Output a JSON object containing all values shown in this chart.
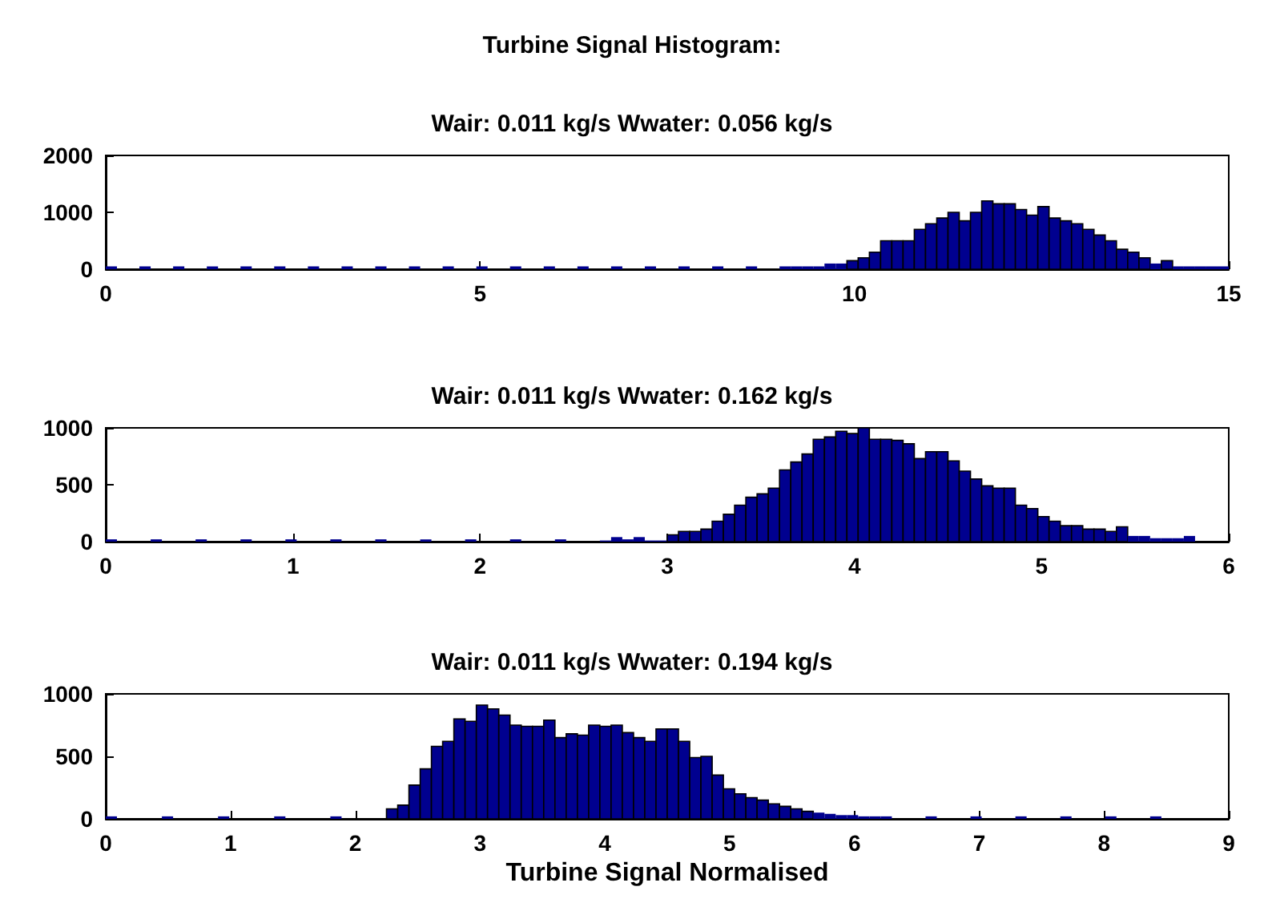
{
  "chart_data": [
    {
      "type": "histogram",
      "title": "Turbine Signal Histogram:",
      "subtitle": "Wair: 0.011 kg/s Wwater: 0.056 kg/s",
      "color": "#00008f",
      "bins": [
        0,
        0.15,
        0.3,
        0.45,
        0.6,
        0.75,
        0.9,
        1.05,
        1.2,
        1.35,
        1.5,
        1.65,
        1.8,
        1.95,
        2.1,
        2.25,
        2.4,
        2.55,
        2.7,
        2.85,
        3,
        3.15,
        3.3,
        3.45,
        3.6,
        3.75,
        3.9,
        4.05,
        4.2,
        4.35,
        4.5,
        4.65,
        4.8,
        4.95,
        5.1,
        5.25,
        5.4,
        5.55,
        5.7,
        5.85,
        6,
        6.15,
        6.3,
        6.45,
        6.6,
        6.75,
        6.9,
        7.05,
        7.2,
        7.35,
        7.5,
        7.65,
        7.8,
        7.95,
        8.1,
        8.25,
        8.4,
        8.55,
        8.7,
        8.85,
        9,
        9.15,
        9.3,
        9.45,
        9.6,
        9.75,
        9.9,
        10.05,
        10.2,
        10.35,
        10.5,
        10.65,
        10.8,
        10.95,
        11.1,
        11.25,
        11.4,
        11.55,
        11.7,
        11.85,
        12,
        12.15,
        12.3,
        12.45,
        12.6,
        12.75,
        12.9,
        13.05,
        13.2,
        13.35,
        13.5,
        13.65,
        13.8,
        13.95,
        14.1,
        14.25,
        14.4,
        14.55,
        14.7,
        14.85,
        15
      ],
      "values": [
        50,
        0,
        0,
        50,
        0,
        0,
        50,
        0,
        0,
        50,
        0,
        0,
        50,
        0,
        0,
        50,
        0,
        0,
        50,
        0,
        0,
        50,
        0,
        0,
        50,
        0,
        0,
        50,
        0,
        0,
        50,
        0,
        0,
        50,
        0,
        0,
        50,
        0,
        0,
        50,
        0,
        0,
        50,
        0,
        0,
        50,
        0,
        0,
        50,
        0,
        0,
        50,
        0,
        0,
        50,
        0,
        0,
        50,
        0,
        0,
        50,
        50,
        50,
        50,
        100,
        100,
        150,
        200,
        300,
        500,
        500,
        500,
        700,
        800,
        900,
        1000,
        850,
        1000,
        1200,
        1150,
        1150,
        1050,
        950,
        1100,
        900,
        850,
        800,
        700,
        600,
        500,
        350,
        300,
        200,
        100,
        150,
        50,
        50,
        50,
        50,
        50
      ],
      "xlim": [
        0,
        15
      ],
      "xticks": [
        0,
        5,
        10,
        15
      ],
      "ylim": [
        0,
        2000
      ],
      "yticks": [
        0,
        1000,
        2000
      ]
    },
    {
      "type": "histogram",
      "title": "Wair: 0.011 kg/s Wwater: 0.162 kg/s",
      "color": "#00008f",
      "bins": [
        0,
        0.06,
        0.12,
        0.18,
        0.24,
        0.3,
        0.36,
        0.42,
        0.48,
        0.54,
        0.6,
        0.66,
        0.72,
        0.78,
        0.84,
        0.9,
        0.96,
        1.02,
        1.08,
        1.14,
        1.2,
        1.26,
        1.32,
        1.38,
        1.44,
        1.5,
        1.56,
        1.62,
        1.68,
        1.74,
        1.8,
        1.86,
        1.92,
        1.98,
        2.04,
        2.1,
        2.16,
        2.22,
        2.28,
        2.34,
        2.4,
        2.46,
        2.52,
        2.58,
        2.64,
        2.7,
        2.76,
        2.82,
        2.88,
        2.94,
        3,
        3.06,
        3.12,
        3.18,
        3.24,
        3.3,
        3.36,
        3.42,
        3.48,
        3.54,
        3.6,
        3.66,
        3.72,
        3.78,
        3.84,
        3.9,
        3.96,
        4.02,
        4.08,
        4.14,
        4.2,
        4.26,
        4.32,
        4.38,
        4.44,
        4.5,
        4.56,
        4.62,
        4.68,
        4.74,
        4.8,
        4.86,
        4.92,
        4.98,
        5.04,
        5.1,
        5.16,
        5.22,
        5.28,
        5.34,
        5.4,
        5.46,
        5.52,
        5.58,
        5.64,
        5.7,
        5.76,
        5.82,
        5.88,
        5.94,
        6
      ],
      "values": [
        20,
        0,
        0,
        0,
        20,
        0,
        0,
        0,
        20,
        0,
        0,
        0,
        20,
        0,
        0,
        0,
        20,
        0,
        0,
        0,
        20,
        0,
        0,
        0,
        20,
        0,
        0,
        0,
        20,
        0,
        0,
        0,
        20,
        0,
        0,
        0,
        20,
        0,
        0,
        0,
        20,
        0,
        0,
        0,
        10,
        40,
        20,
        40,
        10,
        10,
        60,
        90,
        90,
        110,
        180,
        240,
        320,
        390,
        420,
        470,
        630,
        700,
        770,
        900,
        920,
        970,
        950,
        1000,
        900,
        900,
        890,
        860,
        730,
        790,
        790,
        710,
        620,
        550,
        490,
        470,
        470,
        320,
        290,
        220,
        180,
        140,
        140,
        110,
        110,
        90,
        130,
        50,
        50,
        30,
        30,
        30,
        50,
        0,
        0,
        0
      ],
      "xlim": [
        0,
        6
      ],
      "xticks": [
        0,
        1,
        2,
        3,
        4,
        5,
        6
      ],
      "ylim": [
        0,
        1000
      ],
      "yticks": [
        0,
        500,
        1000
      ]
    },
    {
      "type": "histogram",
      "title": "Wair: 0.011 kg/s Wwater: 0.194 kg/s",
      "xlabel": "Turbine Signal Normalised",
      "color": "#00008f",
      "bins": [
        0,
        0.09,
        0.18,
        0.27,
        0.36,
        0.45,
        0.54,
        0.63,
        0.72,
        0.81,
        0.9,
        0.99,
        1.08,
        1.17,
        1.26,
        1.35,
        1.44,
        1.53,
        1.62,
        1.71,
        1.8,
        1.89,
        1.98,
        2.07,
        2.16,
        2.25,
        2.34,
        2.43,
        2.52,
        2.61,
        2.7,
        2.79,
        2.88,
        2.97,
        3.06,
        3.15,
        3.24,
        3.33,
        3.42,
        3.51,
        3.6,
        3.69,
        3.78,
        3.87,
        3.96,
        4.05,
        4.14,
        4.23,
        4.32,
        4.41,
        4.5,
        4.59,
        4.68,
        4.77,
        4.86,
        4.95,
        5.04,
        5.13,
        5.22,
        5.31,
        5.4,
        5.49,
        5.58,
        5.67,
        5.76,
        5.85,
        5.94,
        6.03,
        6.12,
        6.21,
        6.3,
        6.39,
        6.48,
        6.57,
        6.66,
        6.75,
        6.84,
        6.93,
        7.02,
        7.11,
        7.2,
        7.29,
        7.38,
        7.47,
        7.56,
        7.65,
        7.74,
        7.83,
        7.92,
        8.01,
        8.1,
        8.19,
        8.28,
        8.37,
        8.46,
        8.55,
        8.64,
        8.73,
        8.82,
        8.91,
        9
      ],
      "values": [
        20,
        0,
        0,
        0,
        0,
        20,
        0,
        0,
        0,
        0,
        20,
        0,
        0,
        0,
        0,
        20,
        0,
        0,
        0,
        0,
        20,
        0,
        0,
        0,
        0,
        80,
        110,
        270,
        400,
        580,
        620,
        800,
        780,
        910,
        880,
        830,
        750,
        740,
        740,
        790,
        650,
        680,
        670,
        750,
        740,
        750,
        690,
        650,
        620,
        720,
        720,
        620,
        490,
        500,
        350,
        240,
        200,
        170,
        150,
        120,
        100,
        80,
        60,
        50,
        40,
        30,
        30,
        20,
        20,
        20,
        0,
        0,
        0,
        20,
        0,
        0,
        0,
        20,
        0,
        0,
        0,
        20,
        0,
        0,
        0,
        20,
        0,
        0,
        0,
        20,
        0,
        0,
        0,
        20,
        0,
        0,
        0,
        0,
        0,
        0
      ],
      "xlim": [
        0,
        9
      ],
      "xticks": [
        0,
        1,
        2,
        3,
        4,
        5,
        6,
        7,
        8,
        9
      ],
      "ylim": [
        0,
        1000
      ],
      "yticks": [
        0,
        500,
        1000
      ]
    }
  ]
}
